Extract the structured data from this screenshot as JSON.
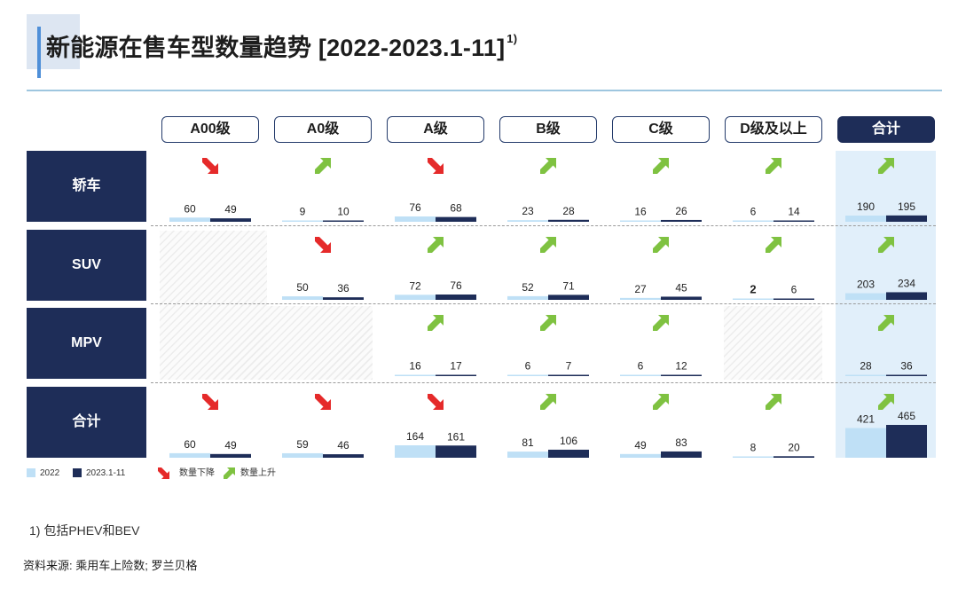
{
  "title": "新能源在售车型数量趋势 [2022-2023.1-11]",
  "title_note": "1)",
  "chart_data": {
    "type": "bar",
    "title": "新能源在售车型数量趋势 [2022-2023.1-11]",
    "columns": [
      "A00级",
      "A0级",
      "A级",
      "B级",
      "C级",
      "D级及以上",
      "合计"
    ],
    "rows": [
      "轿车",
      "SUV",
      "MPV",
      "合计"
    ],
    "series_names": [
      "2022",
      "2023.1-11"
    ],
    "cells": [
      [
        {
          "v2022": 60,
          "v2023": 49,
          "trend": "down"
        },
        {
          "v2022": 9,
          "v2023": 10,
          "trend": "up"
        },
        {
          "v2022": 76,
          "v2023": 68,
          "trend": "down"
        },
        {
          "v2022": 23,
          "v2023": 28,
          "trend": "up"
        },
        {
          "v2022": 16,
          "v2023": 26,
          "trend": "up"
        },
        {
          "v2022": 6,
          "v2023": 14,
          "trend": "up"
        },
        {
          "v2022": 190,
          "v2023": 195,
          "trend": "up"
        }
      ],
      [
        null,
        {
          "v2022": 50,
          "v2023": 36,
          "trend": "down"
        },
        {
          "v2022": 72,
          "v2023": 76,
          "trend": "up"
        },
        {
          "v2022": 52,
          "v2023": 71,
          "trend": "up"
        },
        {
          "v2022": 27,
          "v2023": 45,
          "trend": "up"
        },
        {
          "v2022": 2,
          "v2023": 6,
          "trend": "up",
          "bold2022": true
        },
        {
          "v2022": 203,
          "v2023": 234,
          "trend": "up"
        }
      ],
      [
        null,
        null,
        {
          "v2022": 16,
          "v2023": 17,
          "trend": "up"
        },
        {
          "v2022": 6,
          "v2023": 7,
          "trend": "up"
        },
        {
          "v2022": 6,
          "v2023": 12,
          "trend": "up"
        },
        null,
        {
          "v2022": 28,
          "v2023": 36,
          "trend": "up"
        }
      ],
      [
        {
          "v2022": 60,
          "v2023": 49,
          "trend": "down"
        },
        {
          "v2022": 59,
          "v2023": 46,
          "trend": "down"
        },
        {
          "v2022": 164,
          "v2023": 161,
          "trend": "down"
        },
        {
          "v2022": 81,
          "v2023": 106,
          "trend": "up"
        },
        {
          "v2022": 49,
          "v2023": 83,
          "trend": "up"
        },
        {
          "v2022": 8,
          "v2023": 20,
          "trend": "up"
        },
        {
          "v2022": 421,
          "v2023": 465,
          "trend": "up"
        }
      ]
    ],
    "colors": {
      "bar_2022": "#bfe0f6",
      "bar_2023": "#1e2d58",
      "arrow_down": "#e52a2a",
      "arrow_up": "#7fc241",
      "header_bg": "#1e2d58",
      "total_bg": "#e1effa"
    }
  },
  "legend": {
    "s2022": "2022",
    "s2023": "2023.1-11",
    "down": "数量下降",
    "up": "数量上升"
  },
  "footnote": "1) 包括PHEV和BEV",
  "source": "资料来源: 乘用车上险数; 罗兰贝格"
}
